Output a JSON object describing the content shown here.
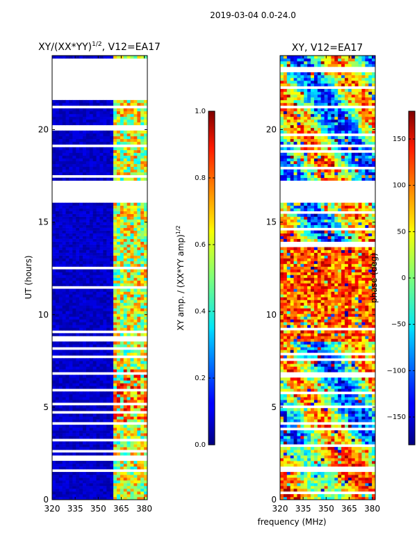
{
  "chart_data": {
    "suptitle": "2019-03-04 0.0-24.0",
    "shared_xlabel": "frequency (MHz)",
    "panels": [
      {
        "type": "heatmap",
        "title_main": "XY/(XX*YY)",
        "title_exp": "1/2",
        "title_tail": ", V12=EA17",
        "ylabel": "UT (hours)",
        "xlim": [
          320,
          382
        ],
        "ylim": [
          0,
          24
        ],
        "xticks": [
          320,
          335,
          350,
          365,
          380
        ],
        "yticks": [
          0,
          5,
          10,
          15,
          20
        ],
        "quantity": "amplitude",
        "colorbar": {
          "label_main": "XY amp. / (XX*YY amp)",
          "label_exp": "1/2",
          "range": [
            0.0,
            1.0
          ],
          "ticks": [
            "0.0",
            "0.2",
            "0.4",
            "0.6",
            "0.8",
            "1.0"
          ],
          "tick_values": [
            0.0,
            0.2,
            0.4,
            0.6,
            0.8,
            1.0
          ]
        },
        "bright_channel_band_mhz": [
          360,
          381
        ],
        "blank_time_ranges_hours": [
          [
            21.7,
            23.6
          ],
          [
            16.1,
            17.2
          ]
        ]
      },
      {
        "type": "heatmap",
        "title": "XY, V12=EA17",
        "xlim": [
          320,
          382
        ],
        "ylim": [
          0,
          24
        ],
        "xticks": [
          320,
          335,
          350,
          365,
          380
        ],
        "yticks": [
          0,
          5,
          10,
          15,
          20
        ],
        "quantity": "phase",
        "colorbar": {
          "label": "phase (deg)",
          "range": [
            -180,
            180
          ],
          "ticks": [
            "-150",
            "-100",
            "-50",
            "0",
            "50",
            "100",
            "150"
          ],
          "tick_values": [
            -150,
            -100,
            -50,
            0,
            50,
            100,
            150
          ]
        },
        "blank_time_ranges_hours": [
          [
            16.1,
            17.2
          ]
        ]
      }
    ]
  }
}
